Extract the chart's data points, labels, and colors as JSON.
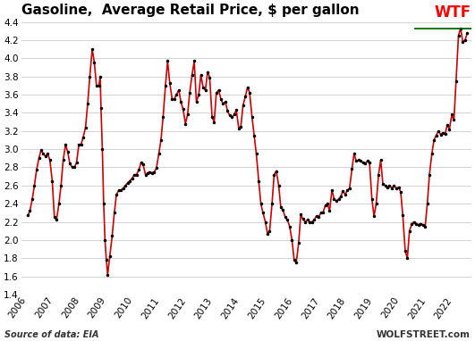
{
  "title": "Gasoline,  Average Retail Price, $ per gallon",
  "title_fontsize": 11,
  "source_text": "Source of data: EIA",
  "watermark": "WOLFSTREET.com",
  "wtf_label": "WTF",
  "wtf_line_y": 4.33,
  "ylabel_min": 1.4,
  "ylabel_max": 4.4,
  "yticks": [
    1.4,
    1.6,
    1.8,
    2.0,
    2.2,
    2.4,
    2.6,
    2.8,
    3.0,
    3.2,
    3.4,
    3.6,
    3.8,
    4.0,
    4.2,
    4.4
  ],
  "line_color": "#cc0000",
  "marker_color": "#000000",
  "bg_color": "#ffffff",
  "grid_color": "#cccccc",
  "wtf_color": "#ff0000",
  "wtf_line_color": "#006600",
  "xlim_min": 2005.75,
  "xlim_max": 2022.65,
  "data": [
    [
      2006.0,
      2.27
    ],
    [
      2006.08,
      2.32
    ],
    [
      2006.17,
      2.45
    ],
    [
      2006.25,
      2.6
    ],
    [
      2006.33,
      2.77
    ],
    [
      2006.42,
      2.9
    ],
    [
      2006.5,
      2.99
    ],
    [
      2006.58,
      2.95
    ],
    [
      2006.67,
      2.92
    ],
    [
      2006.75,
      2.95
    ],
    [
      2006.83,
      2.88
    ],
    [
      2006.92,
      2.65
    ],
    [
      2007.0,
      2.25
    ],
    [
      2007.08,
      2.22
    ],
    [
      2007.17,
      2.4
    ],
    [
      2007.25,
      2.6
    ],
    [
      2007.33,
      2.88
    ],
    [
      2007.42,
      3.05
    ],
    [
      2007.5,
      2.97
    ],
    [
      2007.58,
      2.84
    ],
    [
      2007.67,
      2.8
    ],
    [
      2007.75,
      2.8
    ],
    [
      2007.83,
      2.85
    ],
    [
      2007.92,
      3.05
    ],
    [
      2008.0,
      3.05
    ],
    [
      2008.08,
      3.13
    ],
    [
      2008.17,
      3.24
    ],
    [
      2008.25,
      3.5
    ],
    [
      2008.33,
      3.8
    ],
    [
      2008.42,
      4.1
    ],
    [
      2008.5,
      3.95
    ],
    [
      2008.58,
      3.7
    ],
    [
      2008.67,
      3.7
    ],
    [
      2008.72,
      3.8
    ],
    [
      2008.75,
      3.45
    ],
    [
      2008.8,
      3.0
    ],
    [
      2008.85,
      2.4
    ],
    [
      2008.9,
      2.0
    ],
    [
      2008.95,
      1.78
    ],
    [
      2009.0,
      1.62
    ],
    [
      2009.08,
      1.82
    ],
    [
      2009.17,
      2.05
    ],
    [
      2009.25,
      2.3
    ],
    [
      2009.33,
      2.5
    ],
    [
      2009.42,
      2.55
    ],
    [
      2009.5,
      2.55
    ],
    [
      2009.58,
      2.57
    ],
    [
      2009.67,
      2.6
    ],
    [
      2009.75,
      2.63
    ],
    [
      2009.83,
      2.65
    ],
    [
      2009.92,
      2.68
    ],
    [
      2010.0,
      2.72
    ],
    [
      2010.08,
      2.72
    ],
    [
      2010.17,
      2.77
    ],
    [
      2010.25,
      2.85
    ],
    [
      2010.33,
      2.83
    ],
    [
      2010.42,
      2.72
    ],
    [
      2010.5,
      2.74
    ],
    [
      2010.58,
      2.75
    ],
    [
      2010.67,
      2.74
    ],
    [
      2010.75,
      2.75
    ],
    [
      2010.83,
      2.79
    ],
    [
      2010.92,
      2.95
    ],
    [
      2011.0,
      3.1
    ],
    [
      2011.08,
      3.35
    ],
    [
      2011.17,
      3.7
    ],
    [
      2011.25,
      3.97
    ],
    [
      2011.33,
      3.73
    ],
    [
      2011.42,
      3.55
    ],
    [
      2011.5,
      3.55
    ],
    [
      2011.58,
      3.6
    ],
    [
      2011.67,
      3.65
    ],
    [
      2011.75,
      3.52
    ],
    [
      2011.83,
      3.44
    ],
    [
      2011.92,
      3.28
    ],
    [
      2012.0,
      3.38
    ],
    [
      2012.08,
      3.62
    ],
    [
      2012.17,
      3.82
    ],
    [
      2012.25,
      3.97
    ],
    [
      2012.33,
      3.52
    ],
    [
      2012.42,
      3.6
    ],
    [
      2012.5,
      3.82
    ],
    [
      2012.58,
      3.68
    ],
    [
      2012.67,
      3.65
    ],
    [
      2012.75,
      3.85
    ],
    [
      2012.83,
      3.79
    ],
    [
      2012.92,
      3.35
    ],
    [
      2013.0,
      3.3
    ],
    [
      2013.08,
      3.62
    ],
    [
      2013.17,
      3.65
    ],
    [
      2013.25,
      3.55
    ],
    [
      2013.33,
      3.5
    ],
    [
      2013.42,
      3.52
    ],
    [
      2013.5,
      3.42
    ],
    [
      2013.58,
      3.37
    ],
    [
      2013.67,
      3.35
    ],
    [
      2013.75,
      3.38
    ],
    [
      2013.83,
      3.43
    ],
    [
      2013.92,
      3.23
    ],
    [
      2014.0,
      3.25
    ],
    [
      2014.08,
      3.48
    ],
    [
      2014.17,
      3.58
    ],
    [
      2014.25,
      3.68
    ],
    [
      2014.33,
      3.62
    ],
    [
      2014.42,
      3.35
    ],
    [
      2014.5,
      3.15
    ],
    [
      2014.58,
      2.95
    ],
    [
      2014.67,
      2.65
    ],
    [
      2014.75,
      2.4
    ],
    [
      2014.83,
      2.3
    ],
    [
      2014.92,
      2.2
    ],
    [
      2015.0,
      2.07
    ],
    [
      2015.08,
      2.1
    ],
    [
      2015.17,
      2.4
    ],
    [
      2015.25,
      2.72
    ],
    [
      2015.33,
      2.76
    ],
    [
      2015.42,
      2.6
    ],
    [
      2015.5,
      2.36
    ],
    [
      2015.58,
      2.33
    ],
    [
      2015.67,
      2.25
    ],
    [
      2015.75,
      2.22
    ],
    [
      2015.83,
      2.15
    ],
    [
      2015.92,
      2.0
    ],
    [
      2016.0,
      1.78
    ],
    [
      2016.08,
      1.75
    ],
    [
      2016.17,
      1.97
    ],
    [
      2016.25,
      2.28
    ],
    [
      2016.33,
      2.23
    ],
    [
      2016.42,
      2.2
    ],
    [
      2016.5,
      2.22
    ],
    [
      2016.58,
      2.2
    ],
    [
      2016.67,
      2.2
    ],
    [
      2016.75,
      2.22
    ],
    [
      2016.83,
      2.26
    ],
    [
      2016.92,
      2.25
    ],
    [
      2017.0,
      2.3
    ],
    [
      2017.08,
      2.3
    ],
    [
      2017.17,
      2.38
    ],
    [
      2017.25,
      2.4
    ],
    [
      2017.33,
      2.32
    ],
    [
      2017.42,
      2.55
    ],
    [
      2017.5,
      2.45
    ],
    [
      2017.58,
      2.43
    ],
    [
      2017.67,
      2.45
    ],
    [
      2017.75,
      2.48
    ],
    [
      2017.83,
      2.54
    ],
    [
      2017.92,
      2.5
    ],
    [
      2018.0,
      2.55
    ],
    [
      2018.08,
      2.57
    ],
    [
      2018.17,
      2.78
    ],
    [
      2018.25,
      2.95
    ],
    [
      2018.33,
      2.87
    ],
    [
      2018.42,
      2.88
    ],
    [
      2018.5,
      2.87
    ],
    [
      2018.58,
      2.85
    ],
    [
      2018.67,
      2.84
    ],
    [
      2018.75,
      2.87
    ],
    [
      2018.83,
      2.85
    ],
    [
      2018.92,
      2.45
    ],
    [
      2019.0,
      2.26
    ],
    [
      2019.08,
      2.4
    ],
    [
      2019.17,
      2.72
    ],
    [
      2019.25,
      2.88
    ],
    [
      2019.33,
      2.62
    ],
    [
      2019.42,
      2.6
    ],
    [
      2019.5,
      2.58
    ],
    [
      2019.58,
      2.6
    ],
    [
      2019.67,
      2.57
    ],
    [
      2019.75,
      2.6
    ],
    [
      2019.83,
      2.57
    ],
    [
      2019.92,
      2.58
    ],
    [
      2020.0,
      2.53
    ],
    [
      2020.08,
      2.27
    ],
    [
      2020.17,
      1.88
    ],
    [
      2020.25,
      1.8
    ],
    [
      2020.33,
      2.1
    ],
    [
      2020.42,
      2.18
    ],
    [
      2020.5,
      2.2
    ],
    [
      2020.58,
      2.18
    ],
    [
      2020.67,
      2.17
    ],
    [
      2020.75,
      2.18
    ],
    [
      2020.83,
      2.17
    ],
    [
      2020.92,
      2.15
    ],
    [
      2021.0,
      2.4
    ],
    [
      2021.08,
      2.72
    ],
    [
      2021.17,
      2.95
    ],
    [
      2021.25,
      3.1
    ],
    [
      2021.33,
      3.15
    ],
    [
      2021.42,
      3.2
    ],
    [
      2021.5,
      3.16
    ],
    [
      2021.58,
      3.18
    ],
    [
      2021.67,
      3.17
    ],
    [
      2021.75,
      3.27
    ],
    [
      2021.83,
      3.22
    ],
    [
      2021.92,
      3.38
    ],
    [
      2022.0,
      3.32
    ],
    [
      2022.08,
      3.75
    ],
    [
      2022.17,
      4.25
    ],
    [
      2022.25,
      4.33
    ],
    [
      2022.33,
      4.18
    ],
    [
      2022.42,
      4.2
    ],
    [
      2022.5,
      4.28
    ]
  ]
}
